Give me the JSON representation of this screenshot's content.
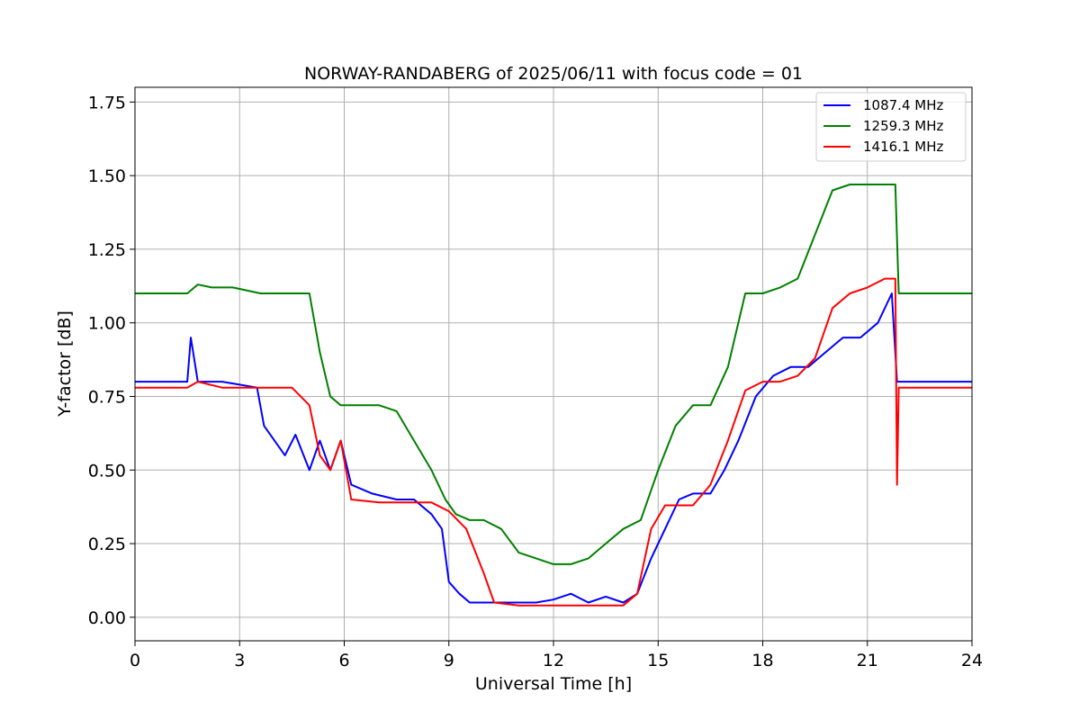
{
  "chart_data": {
    "type": "line",
    "title": "NORWAY-RANDABERG of 2025/06/11 with focus code = 01",
    "xlabel": "Universal Time [h]",
    "ylabel": "Y-factor [dB]",
    "xlim": [
      0,
      24
    ],
    "ylim": [
      -0.08,
      1.8
    ],
    "xticks": [
      0,
      3,
      6,
      9,
      12,
      15,
      18,
      21,
      24
    ],
    "yticks": [
      0.0,
      0.25,
      0.5,
      0.75,
      1.0,
      1.25,
      1.5,
      1.75
    ],
    "xtick_labels": [
      "0",
      "3",
      "6",
      "9",
      "12",
      "15",
      "18",
      "21",
      "24"
    ],
    "ytick_labels": [
      "0.00",
      "0.25",
      "0.50",
      "0.75",
      "1.00",
      "1.25",
      "1.50",
      "1.75"
    ],
    "grid": true,
    "legend_position": "top-right",
    "series": [
      {
        "name": "1087.4 MHz",
        "color": "#0000ff",
        "x": [
          0,
          1.0,
          1.5,
          1.6,
          1.8,
          2.5,
          3.5,
          3.7,
          4.0,
          4.3,
          4.6,
          5.0,
          5.3,
          5.6,
          5.9,
          6.2,
          6.8,
          7.5,
          8.0,
          8.5,
          8.8,
          9.0,
          9.3,
          9.6,
          10.0,
          10.5,
          11.0,
          11.5,
          12.0,
          12.5,
          13.0,
          13.5,
          14.0,
          14.4,
          14.8,
          15.2,
          15.6,
          16.0,
          16.5,
          16.9,
          17.3,
          17.8,
          18.3,
          18.8,
          19.3,
          19.8,
          20.3,
          20.8,
          21.3,
          21.7,
          21.85,
          22.5,
          23.5,
          24
        ],
        "y": [
          0.8,
          0.8,
          0.8,
          0.95,
          0.8,
          0.8,
          0.78,
          0.65,
          0.6,
          0.55,
          0.62,
          0.5,
          0.6,
          0.5,
          0.6,
          0.45,
          0.42,
          0.4,
          0.4,
          0.35,
          0.3,
          0.12,
          0.08,
          0.05,
          0.05,
          0.05,
          0.05,
          0.05,
          0.06,
          0.08,
          0.05,
          0.07,
          0.05,
          0.08,
          0.2,
          0.3,
          0.4,
          0.42,
          0.42,
          0.5,
          0.6,
          0.75,
          0.82,
          0.85,
          0.85,
          0.9,
          0.95,
          0.95,
          1.0,
          1.1,
          0.8,
          0.8,
          0.8,
          0.8
        ]
      },
      {
        "name": "1259.3 MHz",
        "color": "#008000",
        "x": [
          0,
          1.0,
          1.5,
          1.8,
          2.2,
          2.8,
          3.6,
          4.0,
          4.5,
          5.0,
          5.3,
          5.6,
          5.9,
          6.2,
          6.6,
          7.0,
          7.5,
          8.0,
          8.5,
          8.9,
          9.2,
          9.6,
          10.0,
          10.5,
          11.0,
          11.5,
          12.0,
          12.5,
          13.0,
          13.5,
          14.0,
          14.5,
          15.0,
          15.5,
          16.0,
          16.5,
          17.0,
          17.5,
          18.0,
          18.5,
          19.0,
          19.5,
          20.0,
          20.5,
          21.0,
          21.5,
          21.8,
          21.9,
          22.5,
          23.5,
          24
        ],
        "y": [
          1.1,
          1.1,
          1.1,
          1.13,
          1.12,
          1.12,
          1.1,
          1.1,
          1.1,
          1.1,
          0.9,
          0.75,
          0.72,
          0.72,
          0.72,
          0.72,
          0.7,
          0.6,
          0.5,
          0.4,
          0.35,
          0.33,
          0.33,
          0.3,
          0.22,
          0.2,
          0.18,
          0.18,
          0.2,
          0.25,
          0.3,
          0.33,
          0.5,
          0.65,
          0.72,
          0.72,
          0.85,
          1.1,
          1.1,
          1.12,
          1.15,
          1.3,
          1.45,
          1.47,
          1.47,
          1.47,
          1.47,
          1.1,
          1.1,
          1.1,
          1.1
        ]
      },
      {
        "name": "1416.1 MHz",
        "color": "#ff0000",
        "x": [
          0,
          1.0,
          1.5,
          1.8,
          2.5,
          3.5,
          4.5,
          5.0,
          5.3,
          5.6,
          5.9,
          6.2,
          7.0,
          8.0,
          8.5,
          9.0,
          9.5,
          10.0,
          10.3,
          11.0,
          11.5,
          12.0,
          12.5,
          13.0,
          13.5,
          14.0,
          14.4,
          14.8,
          15.2,
          15.6,
          16.0,
          16.5,
          17.0,
          17.5,
          18.0,
          18.5,
          19.0,
          19.5,
          20.0,
          20.5,
          21.0,
          21.5,
          21.8,
          21.85,
          21.9,
          22.5,
          23.5,
          24
        ],
        "y": [
          0.78,
          0.78,
          0.78,
          0.8,
          0.78,
          0.78,
          0.78,
          0.72,
          0.55,
          0.5,
          0.6,
          0.4,
          0.39,
          0.39,
          0.39,
          0.36,
          0.3,
          0.15,
          0.05,
          0.04,
          0.04,
          0.04,
          0.04,
          0.04,
          0.04,
          0.04,
          0.08,
          0.3,
          0.38,
          0.38,
          0.38,
          0.45,
          0.6,
          0.77,
          0.8,
          0.8,
          0.82,
          0.88,
          1.05,
          1.1,
          1.12,
          1.15,
          1.15,
          0.45,
          0.78,
          0.78,
          0.78,
          0.78
        ]
      }
    ]
  }
}
